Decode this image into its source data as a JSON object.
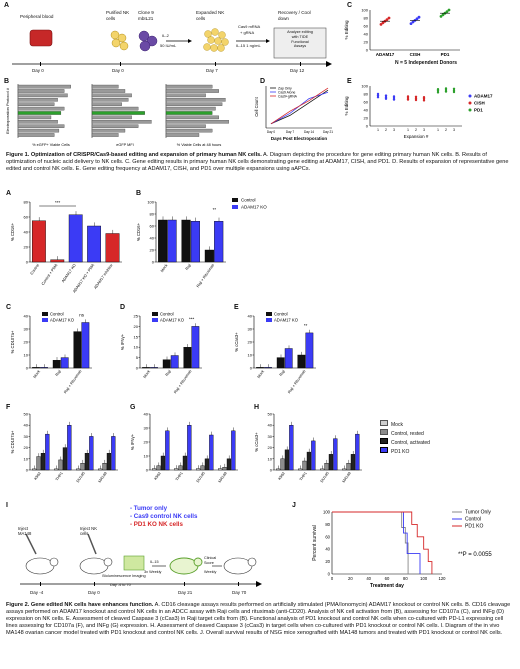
{
  "panels": {
    "A": "A",
    "B": "B",
    "C": "C",
    "D": "D",
    "E": "E",
    "F": "F",
    "G": "G",
    "H": "H",
    "I": "I",
    "J": "J"
  },
  "fig1": {
    "workflow": {
      "steps": [
        {
          "label": "Peripheral blood",
          "day": "Day 0"
        },
        {
          "label": "Purified NK cells",
          "day": "Day 0"
        },
        {
          "label": "Clone 9 mbIL21",
          "day": ""
        },
        {
          "label": "Expanded NK cells",
          "day": "Day 7"
        },
        {
          "label": "Recovery / Cool down",
          "day": "Day 12"
        }
      ],
      "arrow1_top": "IL-2",
      "arrow1_bot": "50 IU/mL",
      "arrow2_top": "Cas9 mRNA",
      "arrow2_mid": "+ gRNA",
      "arrow2_bot": "IL-15 1 ng/mL",
      "box_lines": [
        "Analyze editing",
        "with TIDE",
        "Functional",
        "Assays"
      ]
    },
    "b_ylabel": "Electroporation Protocol #",
    "b_xlabels": [
      "% eGFP+ Viable Cells",
      "eGFP MFI",
      "% Viable Cells at 48 hours"
    ],
    "c_ylabel": "% Editing",
    "c_note": "N = 5 Independent Donors",
    "c_ticks": [
      "100",
      "80",
      "60",
      "40",
      "20",
      "0"
    ],
    "d_ylabel": "Cell Count",
    "d_xlabel": "Days Post Electroporation",
    "d_ticks": [
      "Day 0",
      "Day 7",
      "Day 14",
      "Day 21"
    ],
    "e_ylabel": "% Editing",
    "e_xlabel": "Expansion #",
    "e_ticks": [
      "100",
      "80",
      "60",
      "40",
      "20",
      "0"
    ]
  },
  "chart_data": [
    {
      "type": "scatter",
      "panel": "C",
      "categories": [
        "ADAM17",
        "CISH",
        "PD1"
      ],
      "series": [
        {
          "name": "",
          "values": [
            72,
            74,
            92
          ]
        }
      ],
      "ylim": [
        0,
        100
      ],
      "ylabel": "% Editing"
    },
    {
      "type": "line",
      "panel": "D",
      "x": [
        "Day 0",
        "Day 7",
        "Day 14",
        "Day 21"
      ],
      "series": [
        {
          "name": "Zap Only",
          "values": [
            1,
            3,
            6,
            9
          ]
        },
        {
          "name": "Cas9 Alone",
          "values": [
            1,
            3.5,
            7,
            8.5
          ]
        },
        {
          "name": "Cas9+gRNA",
          "values": [
            1,
            4,
            6.5,
            9.5
          ]
        }
      ],
      "ylabel": "Cell Count",
      "xlabel": "Days Post Electroporation"
    },
    {
      "type": "scatter",
      "panel": "E",
      "categories": [
        "1",
        "2",
        "3"
      ],
      "series": [
        {
          "name": "ADAM17",
          "values": [
            76,
            72,
            70
          ]
        },
        {
          "name": "CISH",
          "values": [
            70,
            69,
            68
          ]
        },
        {
          "name": "PD1",
          "values": [
            88,
            90,
            89
          ]
        }
      ],
      "ylim": [
        0,
        100
      ],
      "ylabel": "% Editing",
      "xlabel": "Expansion #"
    },
    {
      "type": "bar",
      "panel": "2A",
      "categories": [
        "Control",
        "Control + PMA",
        "ADAM17 KO",
        "ADAM17 KO + PMA",
        "ADAM17 inhibitor"
      ],
      "values": [
        55,
        3,
        63,
        48,
        38
      ],
      "colors": [
        "#d62728",
        "#d62728",
        "#3b3bf5",
        "#3b3bf5",
        "#d62728"
      ],
      "ylim": [
        0,
        80
      ],
      "ylabel": "% CD16+",
      "ticks": [
        "80",
        "60",
        "40",
        "20",
        "0"
      ],
      "sig": "***"
    },
    {
      "type": "bar",
      "panel": "2B",
      "categories": [
        "Mock",
        "Raji",
        "Raji + Rituximab"
      ],
      "series": [
        {
          "name": "Control",
          "values": [
            70,
            70,
            20
          ]
        },
        {
          "name": "ADAM17 KO",
          "values": [
            70,
            68,
            68
          ]
        }
      ],
      "ylim": [
        0,
        100
      ],
      "ylabel": "% CD16+",
      "ticks": [
        "100",
        "80",
        "60",
        "40",
        "20",
        "0"
      ],
      "sig": "**"
    },
    {
      "type": "bar",
      "panel": "2C",
      "categories": [
        "Mock",
        "Raji",
        "Raji + Rituximab"
      ],
      "series": [
        {
          "name": "Control",
          "values": [
            0.5,
            6,
            28
          ]
        },
        {
          "name": "ADAM17 KO",
          "values": [
            0.5,
            8,
            35
          ]
        }
      ],
      "ylim": [
        0,
        40
      ],
      "ylabel": "% CD107a+",
      "ticks": [
        "40",
        "30",
        "20",
        "10",
        "0"
      ],
      "sig": "ns"
    },
    {
      "type": "bar",
      "panel": "2D",
      "categories": [
        "Mock",
        "Raji",
        "Raji + Rituximab"
      ],
      "series": [
        {
          "name": "Control",
          "values": [
            0.3,
            4,
            10
          ]
        },
        {
          "name": "ADAM17 KO",
          "values": [
            0.3,
            6,
            20
          ]
        }
      ],
      "ylim": [
        0,
        25
      ],
      "ylabel": "% IFNγ+",
      "ticks": [
        "25",
        "20",
        "15",
        "10",
        "5",
        "0"
      ],
      "sig": "***"
    },
    {
      "type": "bar",
      "panel": "2E",
      "categories": [
        "Mock",
        "Raji",
        "Raji + Rituximab"
      ],
      "series": [
        {
          "name": "Control",
          "values": [
            0.5,
            8,
            10
          ]
        },
        {
          "name": "ADAM17 KO",
          "values": [
            0.5,
            15,
            27
          ]
        }
      ],
      "ylim": [
        0,
        40
      ],
      "ylabel": "% cCas3+",
      "ticks": [
        "40",
        "30",
        "20",
        "10",
        "0"
      ],
      "sig": "**"
    },
    {
      "type": "bar",
      "panel": "2F",
      "categories": [
        "K562",
        "THP1",
        "DU145",
        "MA148"
      ],
      "series": [
        {
          "name": "Mock",
          "values": [
            1,
            1,
            1,
            1
          ]
        },
        {
          "name": "Control, rested",
          "values": [
            12,
            9,
            6,
            6
          ]
        },
        {
          "name": "Control, activated",
          "values": [
            15,
            20,
            15,
            15
          ]
        },
        {
          "name": "PD1 KO",
          "values": [
            32,
            40,
            30,
            30
          ]
        }
      ],
      "ylim": [
        0,
        50
      ],
      "ylabel": "% CD107a+",
      "ticks": [
        "50",
        "40",
        "30",
        "20",
        "10",
        "0"
      ]
    },
    {
      "type": "bar",
      "panel": "2G",
      "categories": [
        "K562",
        "THP1",
        "DU145",
        "MA148"
      ],
      "series": [
        {
          "name": "Mock",
          "values": [
            1,
            1,
            1,
            1
          ]
        },
        {
          "name": "Control, rested",
          "values": [
            3,
            3,
            3,
            2
          ]
        },
        {
          "name": "Control, activated",
          "values": [
            10,
            10,
            8,
            8
          ]
        },
        {
          "name": "PD1 KO",
          "values": [
            28,
            32,
            25,
            28
          ]
        }
      ],
      "ylim": [
        0,
        40
      ],
      "ylabel": "% IFNγ+",
      "ticks": [
        "40",
        "30",
        "20",
        "10",
        "0"
      ]
    },
    {
      "type": "bar",
      "panel": "2H",
      "categories": [
        "K562",
        "THP1",
        "DU145",
        "MA148"
      ],
      "series": [
        {
          "name": "Mock",
          "values": [
            1,
            1,
            1,
            1
          ]
        },
        {
          "name": "Control, rested",
          "values": [
            10,
            8,
            6,
            6
          ]
        },
        {
          "name": "Control, activated",
          "values": [
            18,
            16,
            14,
            14
          ]
        },
        {
          "name": "PD1 KO",
          "values": [
            40,
            26,
            28,
            32
          ]
        }
      ],
      "ylim": [
        0,
        50
      ],
      "ylabel": "% cCas3+",
      "ticks": [
        "50",
        "40",
        "30",
        "20",
        "10",
        "0"
      ]
    },
    {
      "type": "line",
      "panel": "2J",
      "x_ticks": [
        "0",
        "20",
        "40",
        "60",
        "80",
        "100",
        "120"
      ],
      "y_ticks": [
        "100",
        "80",
        "60",
        "40",
        "20",
        "0"
      ],
      "series": [
        {
          "name": "Tumor Only",
          "points": [
            [
              0,
              100
            ],
            [
              76,
              100
            ],
            [
              76,
              75
            ],
            [
              80,
              75
            ],
            [
              80,
              50
            ],
            [
              83,
              50
            ],
            [
              83,
              0
            ]
          ]
        },
        {
          "name": "Control",
          "points": [
            [
              0,
              100
            ],
            [
              78,
              100
            ],
            [
              78,
              66
            ],
            [
              82,
              66
            ],
            [
              82,
              33
            ],
            [
              96,
              33
            ],
            [
              96,
              0
            ]
          ]
        },
        {
          "name": "PD1 KO",
          "points": [
            [
              0,
              100
            ],
            [
              87,
              100
            ],
            [
              87,
              80
            ],
            [
              93,
              80
            ],
            [
              93,
              60
            ],
            [
              100,
              60
            ],
            [
              100,
              40
            ],
            [
              105,
              40
            ],
            [
              105,
              20
            ],
            [
              109,
              20
            ],
            [
              109,
              0
            ]
          ]
        }
      ],
      "xlabel": "Treatment day",
      "ylabel": "Percent survival",
      "xlim": [
        0,
        120
      ],
      "ylim": [
        0,
        100
      ]
    }
  ],
  "fig2": {
    "legend2a": [
      "Control",
      "ADAM17 KO"
    ],
    "legendF": [
      "Mock",
      "Control, rested",
      "Control, activated",
      "PD1 KO"
    ],
    "sig_pval": "**P = 0.0055",
    "j_legend": [
      "Tumor Only",
      "Control",
      "PD1 KO"
    ],
    "j_ylabel": "Percent survival",
    "j_xlabel": "Treatment day",
    "i_legend": [
      "- Tumor only",
      "- Cas9 control NK cells",
      "- PD1 KO NK cells"
    ],
    "i_labels": {
      "inject_ma": "Inject MA148",
      "inject_nk": "Inject NK cells",
      "bli": "Bioluminescence Imaging",
      "bli_days": "Day -4 to 70",
      "il15": "IL-15",
      "il15_sub": "3x Weekly",
      "clinical": "Clinical Score",
      "clinical_sub": "Weekly",
      "days": [
        "Day -4",
        "Day 0",
        "Day 21",
        "Day 70"
      ]
    }
  },
  "captions": {
    "fig1_title": "Figure 1. Optimization of CRISPR/Cas9-based editing and expansion of primary human NK cells.",
    "fig1_body": " A. Diagram depicting the procedure for gene editing primary human NK cells. B. Results of optimization of nucleic acid delivery to NK cells. C. Gene editing results in primary human NK cells demonstrating gene editing at ADAM17, CISH, and PD1. D. Results of expansion of representative gene edited and control NK cells. E. Gene editing frequency at ADAM17, CISH, and PD1 over multiple expansions using aAPCs.",
    "fig2_title": "Figure 2. Gene edited NK cells have enhances function.",
    "fig2_body": " A. CD16 cleavage assays results performed on artificially stimulated (PMA/Ionomycin) ADAM17 knockout or control NK cells. B. CD16 cleavage assays performed on ADAM17 knockout and control NK cells in an ADCC assay with Raji cells and rituximab (anti-CD20). Analysis of NK cell activation from (B), assessing for CD107a (C), and INFg (D) expression on NK cells. E. Assessment of cleaved Caspase 3 (cCas3) in Raji target cells from (B). Functional analysis of PD1 knockout and control NK cells when co-cultured with PD-L1 expressing cell lines assessing for CD107a (F), and INFg (G) expression. H. Assessment of cleaved Caspase 3 (cCas3) in target cells when co-cultured with PD1 knockout or control NK cells. I. Diagram of the in vivo MA148 ovarian cancer model treated with PD1 knockout and control NK cells. J. Overall survival results of NSG mice xenografted with MA148 tumors and treated with PD1 knockout or control NK cells."
  }
}
